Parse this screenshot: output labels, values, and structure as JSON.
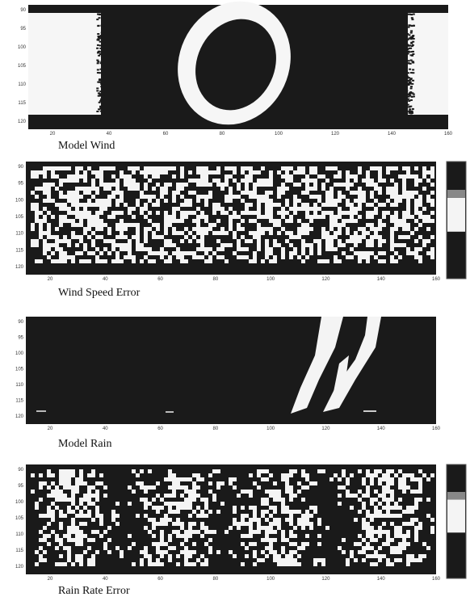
{
  "panels": [
    {
      "caption": "Model Wind",
      "xticks": [
        20,
        40,
        60,
        80,
        100,
        120,
        140,
        160
      ],
      "yticks": [
        90,
        95,
        100,
        105,
        110,
        115,
        120
      ]
    },
    {
      "caption": "Wind Speed Error",
      "xticks": [
        20,
        40,
        60,
        80,
        100,
        120,
        140,
        160
      ],
      "yticks": [
        90,
        95,
        100,
        105,
        110,
        115,
        120
      ]
    },
    {
      "caption": "Model Rain",
      "xticks": [
        20,
        40,
        60,
        80,
        100,
        120,
        140,
        160
      ],
      "yticks": [
        90,
        95,
        100,
        105,
        110,
        115,
        120
      ]
    },
    {
      "caption": "Rain Rate Error",
      "xticks": [
        20,
        40,
        60,
        80,
        100,
        120,
        140,
        160
      ],
      "yticks": [
        90,
        95,
        100,
        105,
        110,
        115,
        120
      ]
    }
  ]
}
